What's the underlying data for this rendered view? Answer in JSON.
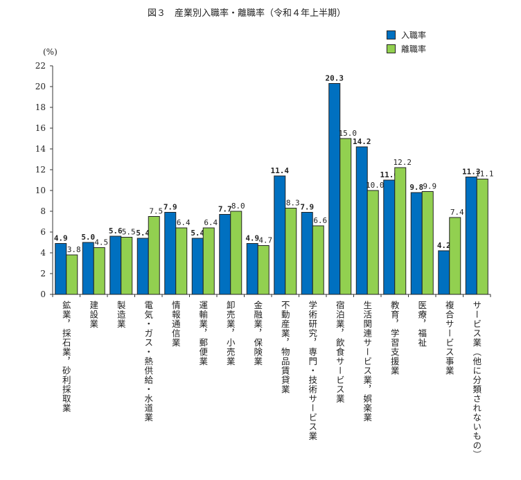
{
  "chart_data": {
    "type": "bar",
    "title": "図３　産業別入職率・離職率（令和４年上半期）",
    "ylabel": "(%)",
    "ylim": [
      0,
      22
    ],
    "yticks": [
      0,
      2,
      4,
      6,
      8,
      10,
      12,
      14,
      16,
      18,
      20,
      22
    ],
    "grid": false,
    "legend": "top-right",
    "categories": [
      "鉱業，採石業，砂利採取業",
      "建設業",
      "製造業",
      "電気・ガス・熱供給・水道業",
      "情報通信業",
      "運輸業，郵便業",
      "卸売業，小売業",
      "金融業，保険業",
      "不動産業，物品賃貸業",
      "学術研究，専門・技術サービス業",
      "宿泊業，飲食サービス業",
      "生活関連サービス業，娯楽業",
      "教育，学習支援業",
      "医療，福祉",
      "複合サービス事業",
      "サービス業（他に分類されないもの）"
    ],
    "series": [
      {
        "name": "入職率",
        "color": "#0070c0",
        "values": [
          4.9,
          5.0,
          5.6,
          5.4,
          7.9,
          5.4,
          7.7,
          4.9,
          11.4,
          7.9,
          20.3,
          14.2,
          11.0,
          9.8,
          4.2,
          11.3
        ]
      },
      {
        "name": "離職率",
        "color": "#92d050",
        "values": [
          3.8,
          4.5,
          5.5,
          7.5,
          6.4,
          6.4,
          8.0,
          4.7,
          8.3,
          6.6,
          15.0,
          10.0,
          12.2,
          9.9,
          7.4,
          11.1
        ]
      }
    ]
  }
}
